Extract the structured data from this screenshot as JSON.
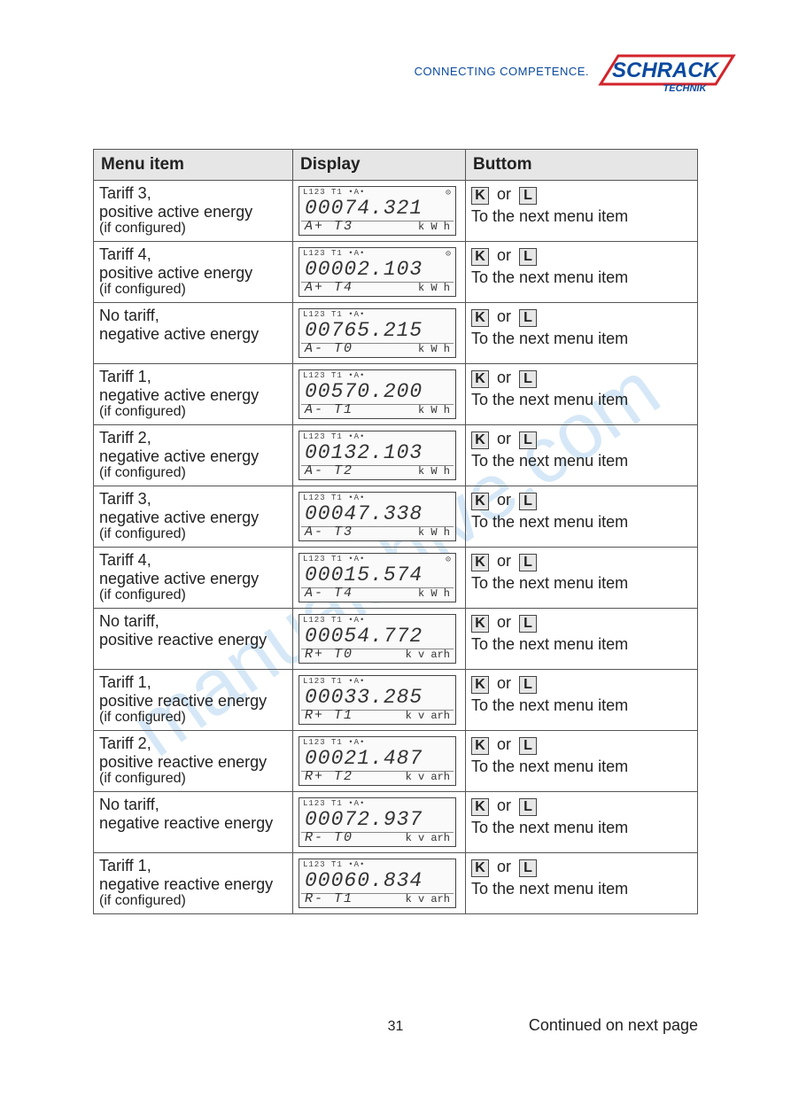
{
  "header": {
    "tagline": "CONNECTING COMPETENCE.",
    "logo_main": "SCHRACK",
    "logo_sub": "TECHNIK",
    "logo_red": "#d2232a",
    "logo_blue": "#0b4aa0"
  },
  "watermark": "manualshive.com",
  "table": {
    "headers": {
      "col1": "Menu item",
      "col2": "Display",
      "col3": "Buttom"
    },
    "button_keys": {
      "k": "K",
      "or": "or",
      "l": "L"
    },
    "button_next": "To the next menu item",
    "lcd_top": "L123  T1       •A•",
    "rows": [
      {
        "line1": "Tariff 3,",
        "line2": "positive active energy",
        "note": "(if configured)",
        "value": "00074.321",
        "code": "A+  T3",
        "unit": "k W h",
        "clock": "⊝"
      },
      {
        "line1": "Tariff 4,",
        "line2": "positive active energy",
        "note": "(if configured)",
        "value": "00002.103",
        "code": "A+  T4",
        "unit": "k W h",
        "clock": "⊝"
      },
      {
        "line1": "No tariff,",
        "line2": "negative active energy",
        "note": "",
        "value": "00765.215",
        "code": "A-  T0",
        "unit": "k W h",
        "clock": ""
      },
      {
        "line1": "Tariff 1,",
        "line2": "negative active energy",
        "note": "(if configured)",
        "value": "00570.200",
        "code": "A-  T1",
        "unit": "k W h",
        "clock": ""
      },
      {
        "line1": "Tariff 2,",
        "line2": "negative active energy",
        "note": "(if configured)",
        "value": "00132.103",
        "code": "A-  T2",
        "unit": "k W h",
        "clock": ""
      },
      {
        "line1": "Tariff 3,",
        "line2": "negative active energy",
        "note": "(if configured)",
        "value": "00047.338",
        "code": "A-  T3",
        "unit": "k W h",
        "clock": ""
      },
      {
        "line1": "Tariff 4,",
        "line2": "negative active energy",
        "note": "(if configured)",
        "value": "00015.574",
        "code": "A-  T4",
        "unit": "k W h",
        "clock": "⊝"
      },
      {
        "line1": "No tariff,",
        "line2": "positive reactive energy",
        "note": "",
        "value": "00054.772",
        "code": "R+  T0",
        "unit": "k v arh",
        "clock": ""
      },
      {
        "line1": "Tariff 1,",
        "line2": "positive reactive energy",
        "note": "(if configured)",
        "value": "00033.285",
        "code": "R+  T1",
        "unit": "k v arh",
        "clock": ""
      },
      {
        "line1": "Tariff 2,",
        "line2": "positive reactive energy",
        "note": "(if configured)",
        "value": "00021.487",
        "code": "R+  T2",
        "unit": "k v arh",
        "clock": ""
      },
      {
        "line1": "No tariff,",
        "line2": "negative reactive energy",
        "note": "",
        "value": "00072.937",
        "code": "R-  T0",
        "unit": "k v arh",
        "clock": ""
      },
      {
        "line1": "Tariff 1,",
        "line2": "negative reactive energy",
        "note": "(if configured)",
        "value": "00060.834",
        "code": "R-  T1",
        "unit": "k v arh",
        "clock": ""
      }
    ]
  },
  "footer": {
    "continued": "Continued on next page",
    "page": "31"
  }
}
